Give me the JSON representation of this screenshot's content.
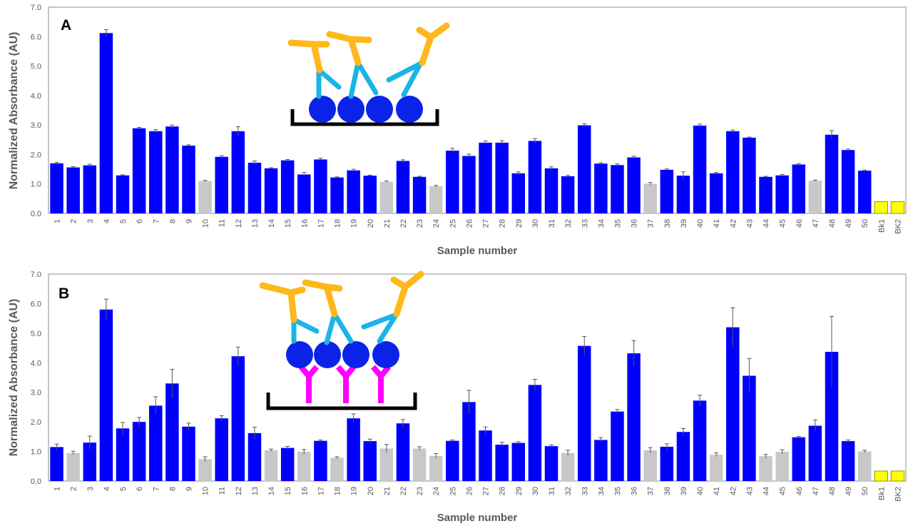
{
  "colors": {
    "tested": "#0000FF",
    "control": "#C8C8C8",
    "blank": "#FFFF00",
    "axis": "#595959",
    "plate": "#000000",
    "antigen": "#0B22E8",
    "primary_antibody": "#1AB4E8",
    "secondary_antibody": "#FFB81C",
    "capture_antibody": "#FF00FF"
  },
  "chart_data": [
    {
      "type": "bar",
      "panel_label": "A",
      "ylabel": "Normalized Absorbance (AU)",
      "xlabel": "Sample number",
      "ylim": [
        0,
        7
      ],
      "yticks": [
        "0.0",
        "1.0",
        "2.0",
        "3.0",
        "4.0",
        "5.0",
        "6.0",
        "7.0"
      ],
      "categories": [
        "1",
        "2",
        "3",
        "4",
        "5",
        "6",
        "7",
        "8",
        "9",
        "10",
        "11",
        "12",
        "13",
        "14",
        "15",
        "16",
        "17",
        "18",
        "19",
        "20",
        "21",
        "22",
        "23",
        "24",
        "25",
        "26",
        "27",
        "28",
        "29",
        "30",
        "31",
        "32",
        "33",
        "34",
        "35",
        "36",
        "37",
        "38",
        "39",
        "40",
        "41",
        "42",
        "43",
        "44",
        "45",
        "46",
        "47",
        "48",
        "49",
        "50",
        "Bk1",
        "BK2"
      ],
      "values": [
        1.7,
        1.56,
        1.63,
        6.12,
        1.29,
        2.89,
        2.79,
        2.95,
        2.3,
        1.1,
        1.92,
        2.79,
        1.72,
        1.53,
        1.8,
        1.32,
        1.83,
        1.22,
        1.46,
        1.28,
        1.07,
        1.78,
        1.24,
        0.92,
        2.13,
        1.95,
        2.4,
        2.4,
        1.36,
        2.46,
        1.53,
        1.26,
        2.99,
        1.69,
        1.64,
        1.9,
        1.01,
        1.48,
        1.28,
        2.98,
        1.36,
        2.79,
        2.57,
        1.24,
        1.29,
        1.66,
        1.11,
        2.67,
        2.15,
        1.45,
        0.4,
        0.4
      ],
      "errors": [
        0.03,
        0.03,
        0.04,
        0.12,
        0.02,
        0.03,
        0.05,
        0.05,
        0.03,
        0.02,
        0.04,
        0.15,
        0.06,
        0.02,
        0.03,
        0.07,
        0.04,
        0.02,
        0.04,
        0.02,
        0.03,
        0.04,
        0.02,
        0.03,
        0.08,
        0.06,
        0.06,
        0.07,
        0.05,
        0.08,
        0.05,
        0.03,
        0.05,
        0.03,
        0.04,
        0.04,
        0.04,
        0.03,
        0.13,
        0.05,
        0.03,
        0.04,
        0.02,
        0.02,
        0.03,
        0.03,
        0.02,
        0.14,
        0.03,
        0.02,
        0.0,
        0.0
      ],
      "groups": [
        "tested",
        "tested",
        "tested",
        "tested",
        "tested",
        "tested",
        "tested",
        "tested",
        "tested",
        "control",
        "tested",
        "tested",
        "tested",
        "tested",
        "tested",
        "tested",
        "tested",
        "tested",
        "tested",
        "tested",
        "control",
        "tested",
        "tested",
        "control",
        "tested",
        "tested",
        "tested",
        "tested",
        "tested",
        "tested",
        "tested",
        "tested",
        "tested",
        "tested",
        "tested",
        "tested",
        "control",
        "tested",
        "tested",
        "tested",
        "tested",
        "tested",
        "tested",
        "tested",
        "tested",
        "tested",
        "control",
        "tested",
        "tested",
        "tested",
        "blank",
        "blank"
      ]
    },
    {
      "type": "bar",
      "panel_label": "B",
      "ylabel": "Normalized Absorbance (AU)",
      "xlabel": "Sample number",
      "ylim": [
        0,
        7
      ],
      "yticks": [
        "0.0",
        "1.0",
        "2.0",
        "3.0",
        "4.0",
        "5.0",
        "6.0",
        "7.0"
      ],
      "categories": [
        "1",
        "2",
        "3",
        "4",
        "5",
        "6",
        "7",
        "8",
        "9",
        "10",
        "11",
        "12",
        "13",
        "14",
        "15",
        "16",
        "17",
        "18",
        "19",
        "20",
        "21",
        "22",
        "23",
        "24",
        "25",
        "26",
        "27",
        "28",
        "29",
        "30",
        "31",
        "32",
        "33",
        "34",
        "35",
        "36",
        "37",
        "38",
        "39",
        "40",
        "41",
        "42",
        "43",
        "44",
        "45",
        "46",
        "47",
        "48",
        "49",
        "50",
        "Bk1",
        "BK2"
      ],
      "values": [
        1.15,
        0.95,
        1.3,
        5.8,
        1.78,
        2.0,
        2.55,
        3.3,
        1.84,
        0.74,
        2.12,
        4.22,
        1.62,
        1.04,
        1.12,
        0.99,
        1.36,
        0.79,
        2.12,
        1.35,
        1.1,
        1.95,
        1.1,
        0.85,
        1.36,
        2.67,
        1.71,
        1.23,
        1.29,
        3.25,
        1.18,
        0.95,
        4.57,
        1.39,
        2.35,
        4.32,
        1.04,
        1.16,
        1.66,
        2.72,
        0.89,
        5.2,
        3.56,
        0.84,
        0.99,
        1.48,
        1.87,
        4.37,
        1.35,
        1.0,
        0.34,
        0.34
      ],
      "errors": [
        0.1,
        0.06,
        0.22,
        0.35,
        0.2,
        0.15,
        0.3,
        0.48,
        0.12,
        0.08,
        0.09,
        0.31,
        0.2,
        0.04,
        0.05,
        0.08,
        0.03,
        0.03,
        0.15,
        0.07,
        0.14,
        0.13,
        0.06,
        0.08,
        0.03,
        0.4,
        0.12,
        0.08,
        0.04,
        0.19,
        0.04,
        0.09,
        0.32,
        0.08,
        0.07,
        0.43,
        0.09,
        0.1,
        0.12,
        0.18,
        0.06,
        0.66,
        0.58,
        0.06,
        0.07,
        0.03,
        0.2,
        1.2,
        0.04,
        0.04,
        0.0,
        0.0
      ],
      "groups": [
        "tested",
        "control",
        "tested",
        "tested",
        "tested",
        "tested",
        "tested",
        "tested",
        "tested",
        "control",
        "tested",
        "tested",
        "tested",
        "control",
        "tested",
        "control",
        "tested",
        "control",
        "tested",
        "tested",
        "control",
        "tested",
        "control",
        "control",
        "tested",
        "tested",
        "tested",
        "tested",
        "tested",
        "tested",
        "tested",
        "control",
        "tested",
        "tested",
        "tested",
        "tested",
        "control",
        "tested",
        "tested",
        "tested",
        "control",
        "tested",
        "tested",
        "control",
        "control",
        "tested",
        "tested",
        "tested",
        "tested",
        "control",
        "blank",
        "blank"
      ]
    }
  ]
}
